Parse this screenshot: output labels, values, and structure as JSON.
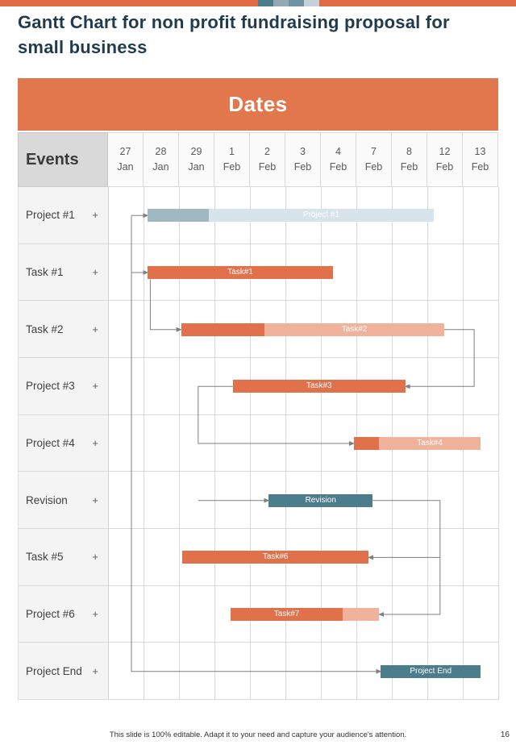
{
  "page": {
    "title": "Gantt Chart for non profit fundraising proposal for small business",
    "footer": "This slide is 100% editable. Adapt it to your need and capture your audience's attention.",
    "page_number": "16"
  },
  "colors": {
    "top_bar": "#E06A44",
    "banner": "#E2774E",
    "title_text": "#1F3B4D",
    "grid_line": "#D9D9D9",
    "events_header_bg": "#D9D9D9",
    "connector": "#808080",
    "orange": "#E0714B",
    "orangeLight": "#F0B29A",
    "teal": "#4C7D8D",
    "blueGray": "#9FB8C2",
    "blueLight": "#D8E4EC",
    "bar_text": "#FFFFFF",
    "top_squares": [
      "#4A7C8C",
      "#93A9B4",
      "#6E93A3",
      "#C6D2D8"
    ]
  },
  "chart_data": {
    "type": "gantt",
    "dates_header": "Dates",
    "events_header": "Events",
    "columns": [
      "27 Jan",
      "28 Jan",
      "29 Jan",
      "1 Feb",
      "2 Feb",
      "3 Feb",
      "4 Feb",
      "7 Feb",
      "8 Feb",
      "12 Feb",
      "13 Feb"
    ],
    "rows": [
      {
        "event": "Project #1",
        "expander": "+",
        "bar": {
          "label": "Project #1",
          "label_in": 1,
          "start": 1.12,
          "segments": [
            {
              "to": 2.84,
              "color": "blueGray"
            },
            {
              "to": 9.18,
              "color": "blueLight"
            }
          ]
        }
      },
      {
        "event": "Task #1",
        "expander": "+",
        "bar": {
          "label": "Task#1",
          "label_in": 0,
          "start": 1.12,
          "segments": [
            {
              "to": 6.34,
              "color": "orange"
            }
          ]
        }
      },
      {
        "event": "Task #2",
        "expander": "+",
        "bar": {
          "label": "Task#2",
          "label_in": 1,
          "start": 2.06,
          "segments": [
            {
              "to": 4.42,
              "color": "orange"
            },
            {
              "to": 9.47,
              "color": "orangeLight"
            }
          ]
        }
      },
      {
        "event": "Project #3",
        "expander": "+",
        "bar": {
          "label": "Task#3",
          "label_in": 0,
          "start": 3.52,
          "segments": [
            {
              "to": 8.38,
              "color": "orange"
            }
          ]
        }
      },
      {
        "event": "Project #4",
        "expander": "+",
        "bar": {
          "label": "Task#4",
          "label_in": 1,
          "start": 6.93,
          "segments": [
            {
              "to": 7.64,
              "color": "orange"
            },
            {
              "to": 10.5,
              "color": "orangeLight"
            }
          ]
        }
      },
      {
        "event": "Revision",
        "expander": "+",
        "bar": {
          "label": "Revision",
          "label_in": 0,
          "start": 4.53,
          "segments": [
            {
              "to": 7.46,
              "color": "teal"
            }
          ]
        }
      },
      {
        "event": "Task #5",
        "expander": "+",
        "bar": {
          "label": "Task#6",
          "label_in": 0,
          "start": 2.1,
          "segments": [
            {
              "to": 7.34,
              "color": "orange"
            }
          ]
        }
      },
      {
        "event": "Project #6",
        "expander": "+",
        "bar": {
          "label": "Task#7",
          "label_in": 0,
          "start": 3.46,
          "segments": [
            {
              "to": 6.61,
              "color": "orange"
            },
            {
              "to": 7.64,
              "color": "orangeLight"
            }
          ]
        }
      },
      {
        "event": "Project End",
        "expander": "+",
        "bar": {
          "label": "Project End",
          "label_in": 0,
          "start": 7.69,
          "segments": [
            {
              "to": 10.5,
              "color": "teal"
            }
          ]
        }
      }
    ],
    "connectors": [
      {
        "points": [
          [
            0.66,
            0.5
          ],
          [
            1.12,
            0.5
          ]
        ],
        "arrow": true
      },
      {
        "points": [
          [
            0.66,
            0.5
          ],
          [
            0.66,
            8.5
          ],
          [
            7.69,
            8.5
          ]
        ],
        "arrow": true
      },
      {
        "points": [
          [
            0.66,
            1.5
          ],
          [
            1.12,
            1.5
          ]
        ],
        "arrow": true
      },
      {
        "points": [
          [
            1.19,
            1.62
          ],
          [
            1.19,
            2.5
          ],
          [
            2.06,
            2.5
          ]
        ],
        "arrow": true
      },
      {
        "points": [
          [
            9.47,
            2.5
          ],
          [
            10.32,
            2.5
          ],
          [
            10.32,
            3.5
          ],
          [
            8.38,
            3.5
          ]
        ],
        "arrow": true
      },
      {
        "points": [
          [
            3.52,
            3.5
          ],
          [
            2.54,
            3.5
          ],
          [
            2.54,
            4.5
          ],
          [
            6.93,
            4.5
          ]
        ],
        "arrow": true
      },
      {
        "points": [
          [
            2.54,
            5.5
          ],
          [
            4.53,
            5.5
          ]
        ],
        "arrow": true
      },
      {
        "points": [
          [
            7.46,
            5.5
          ],
          [
            9.36,
            5.5
          ],
          [
            9.36,
            7.5
          ],
          [
            7.64,
            7.5
          ]
        ],
        "arrow": true
      },
      {
        "points": [
          [
            9.36,
            6.5
          ],
          [
            7.34,
            6.5
          ]
        ],
        "arrow": true
      }
    ]
  }
}
